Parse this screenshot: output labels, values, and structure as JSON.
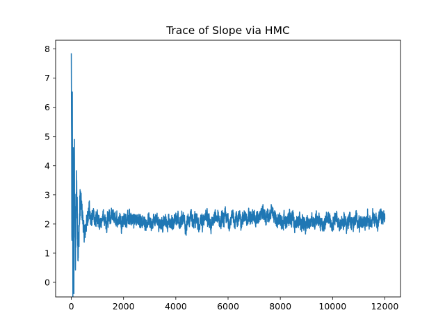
{
  "chart_data": {
    "type": "line",
    "title": "Trace of Slope via HMC",
    "xlabel": "",
    "ylabel": "",
    "xlim": [
      -600,
      12600
    ],
    "ylim": [
      -0.5,
      8.3
    ],
    "x_ticks": [
      0,
      2000,
      4000,
      6000,
      8000,
      10000,
      12000
    ],
    "y_ticks": [
      0,
      1,
      2,
      3,
      4,
      5,
      6,
      7,
      8
    ],
    "grid": false,
    "legend": "none",
    "n_samples": 12000,
    "series": [
      {
        "color": "#1f77b4",
        "description_points": [
          {
            "x": 0,
            "y": 7.85
          },
          {
            "x": 20,
            "y": 1.2
          },
          {
            "x": 40,
            "y": 6.0
          },
          {
            "x": 60,
            "y": 0.1
          },
          {
            "x": 80,
            "y": 4.8
          },
          {
            "x": 100,
            "y": -0.1
          },
          {
            "x": 120,
            "y": 4.2
          },
          {
            "x": 160,
            "y": 0.5
          },
          {
            "x": 200,
            "y": 3.6
          },
          {
            "x": 260,
            "y": 1.0
          },
          {
            "x": 350,
            "y": 3.0
          },
          {
            "x": 500,
            "y": 1.6
          },
          {
            "x": 700,
            "y": 2.6
          },
          {
            "x": 1000,
            "y": 2.1
          },
          {
            "x": 2000,
            "y": 2.15
          },
          {
            "x": 4000,
            "y": 2.1
          },
          {
            "x": 6000,
            "y": 2.1
          },
          {
            "x": 7500,
            "y": 2.25
          },
          {
            "x": 8000,
            "y": 2.05
          },
          {
            "x": 9000,
            "y": 2.2
          },
          {
            "x": 10000,
            "y": 2.1
          },
          {
            "x": 11000,
            "y": 2.1
          },
          {
            "x": 12000,
            "y": 2.1
          }
        ],
        "stationary_mean": 2.12,
        "stationary_range": [
          1.6,
          2.8
        ]
      }
    ]
  }
}
